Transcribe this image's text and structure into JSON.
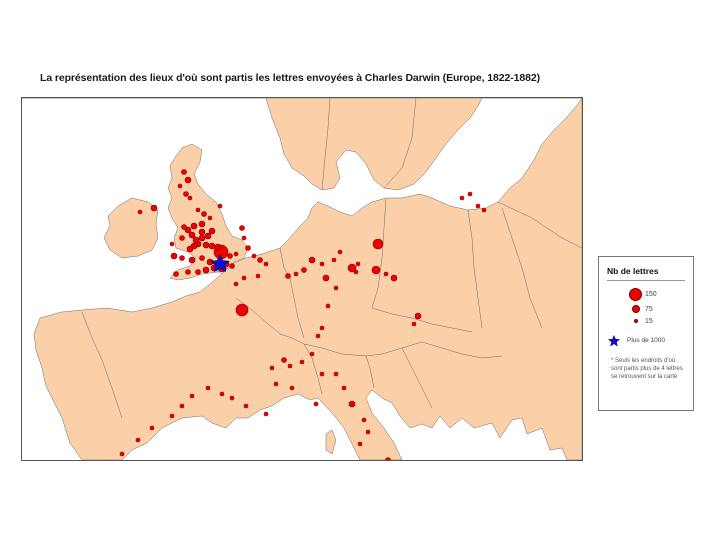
{
  "title": "La représentation des lieux d'où sont partis les lettres envoyées à Charles Darwin  (Europe, 1822-1882)",
  "colors": {
    "land": "#fbcfa8",
    "sea": "#ffffff",
    "border": "#6b6b6b",
    "point_fill": "#f00000",
    "point_stroke": "#7a0000",
    "star": "#1010cc"
  },
  "legend": {
    "title": "Nb de lettres",
    "sizes": [
      {
        "value": 150,
        "label": "150"
      },
      {
        "value": 75,
        "label": "75"
      },
      {
        "value": 15,
        "label": "15"
      }
    ],
    "star_label": "Plus de 1000",
    "note": "* Seuls les endroits d'où sont partis plus de 4 lettres se retrouvent sur la carte"
  },
  "map": {
    "region": "Europe",
    "darwin_home_symbol": "star"
  }
}
